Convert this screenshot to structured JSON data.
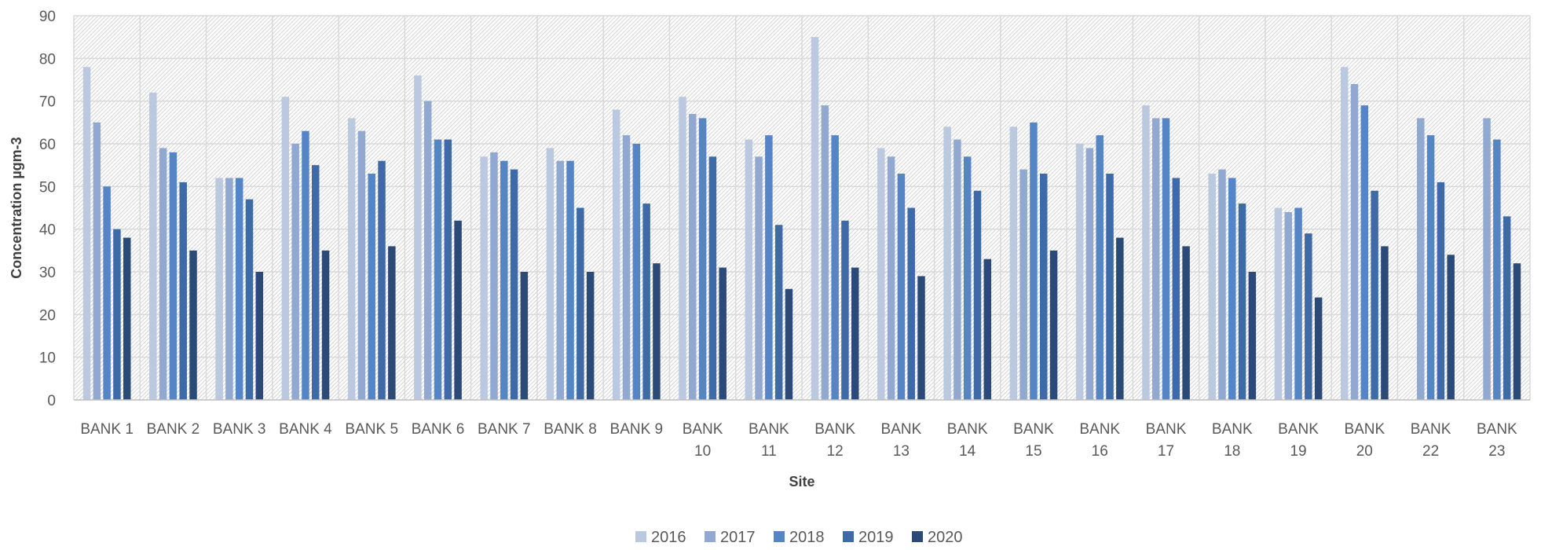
{
  "chart_data": {
    "type": "bar",
    "xlabel": "Site",
    "ylabel": "Concentration µgm-3",
    "ylim": [
      0,
      90
    ],
    "yticks": [
      0,
      10,
      20,
      30,
      40,
      50,
      60,
      70,
      80,
      90
    ],
    "grid": true,
    "legend_position": "bottom",
    "categories": [
      [
        "BANK 1"
      ],
      [
        "BANK 2"
      ],
      [
        "BANK 3"
      ],
      [
        "BANK 4"
      ],
      [
        "BANK 5"
      ],
      [
        "BANK 6"
      ],
      [
        "BANK 7"
      ],
      [
        "BANK 8"
      ],
      [
        "BANK 9"
      ],
      [
        "BANK",
        "10"
      ],
      [
        "BANK",
        "11"
      ],
      [
        "BANK",
        "12"
      ],
      [
        "BANK",
        "13"
      ],
      [
        "BANK",
        "14"
      ],
      [
        "BANK",
        "15"
      ],
      [
        "BANK",
        "16"
      ],
      [
        "BANK",
        "17"
      ],
      [
        "BANK",
        "18"
      ],
      [
        "BANK",
        "19"
      ],
      [
        "BANK",
        "20"
      ],
      [
        "BANK",
        "22"
      ],
      [
        "BANK",
        "23"
      ]
    ],
    "series": [
      {
        "name": "2016",
        "color": "#bac8e0",
        "values": [
          78,
          72,
          52,
          71,
          66,
          76,
          57,
          59,
          68,
          71,
          61,
          85,
          59,
          64,
          64,
          60,
          69,
          53,
          45,
          78,
          null,
          null
        ]
      },
      {
        "name": "2017",
        "color": "#91a9d0",
        "values": [
          65,
          59,
          52,
          60,
          63,
          70,
          58,
          56,
          62,
          67,
          57,
          69,
          57,
          61,
          54,
          59,
          66,
          54,
          44,
          74,
          66,
          66
        ]
      },
      {
        "name": "2018",
        "color": "#5585c5",
        "values": [
          50,
          58,
          52,
          63,
          53,
          61,
          56,
          56,
          60,
          66,
          62,
          62,
          53,
          57,
          65,
          62,
          66,
          52,
          45,
          69,
          62,
          61
        ]
      },
      {
        "name": "2019",
        "color": "#3e6aa8",
        "values": [
          40,
          51,
          47,
          55,
          56,
          61,
          54,
          45,
          46,
          57,
          41,
          42,
          45,
          49,
          53,
          53,
          52,
          46,
          39,
          49,
          51,
          43
        ]
      },
      {
        "name": "2020",
        "color": "#2c4a78",
        "values": [
          38,
          35,
          30,
          35,
          36,
          42,
          30,
          30,
          32,
          31,
          26,
          31,
          29,
          33,
          35,
          38,
          36,
          30,
          24,
          36,
          34,
          32
        ]
      }
    ]
  }
}
